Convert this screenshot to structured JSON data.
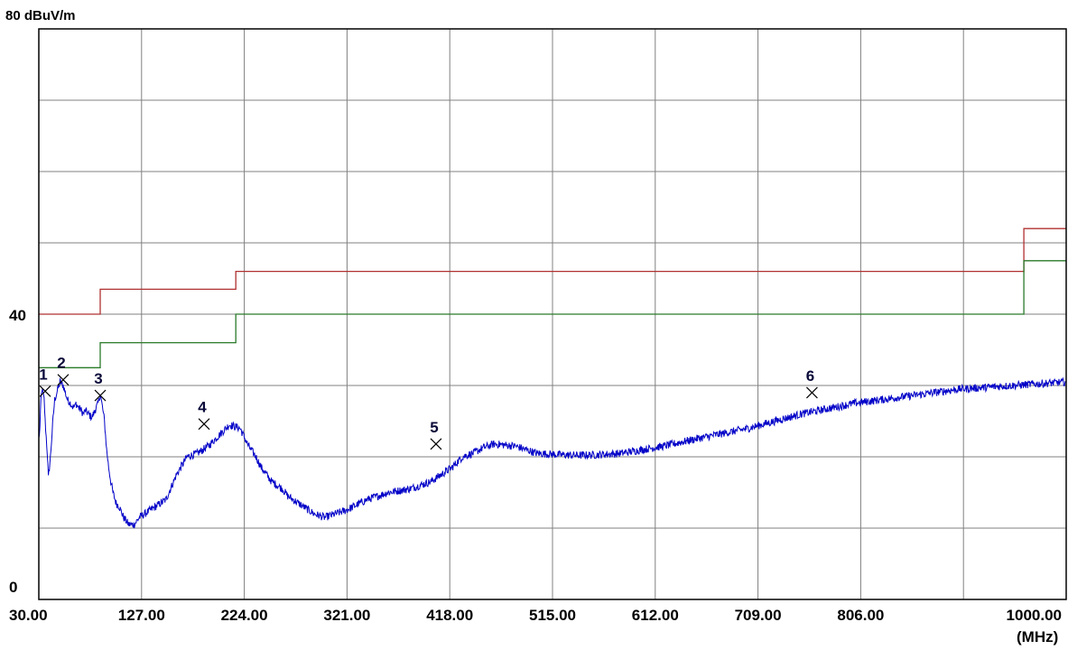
{
  "chart_data": {
    "type": "line",
    "title": "",
    "y_top_label": "80 dBuV/m",
    "y_mid_label": "40",
    "y_bottom_label": "0",
    "x_unit_label": "(MHz)",
    "x_tick_labels": [
      "30.00",
      "127.00",
      "224.00",
      "321.00",
      "418.00",
      "515.00",
      "612.00",
      "709.00",
      "806.00",
      "1000.00"
    ],
    "xlim": [
      30,
      1000
    ],
    "ylim": [
      0,
      80
    ],
    "grid": true,
    "colors": {
      "background": "#ffffff",
      "grid": "#808080",
      "frame": "#000000",
      "measurement": "#0000c8",
      "limit_red": "#b03030",
      "limit_green": "#2a7a2a",
      "marker": "#000000"
    },
    "series": [
      {
        "name": "",
        "color": "#b03030",
        "step": true,
        "x": [
          30,
          88,
          88,
          216,
          216,
          960,
          960,
          1000
        ],
        "y": [
          40,
          40,
          43.5,
          43.5,
          46,
          46,
          52,
          52
        ]
      },
      {
        "name": "",
        "color": "#2a7a2a",
        "step": true,
        "x": [
          30,
          88,
          88,
          216,
          216,
          960,
          960,
          1000
        ],
        "y": [
          32.5,
          32.5,
          36,
          36,
          40,
          40,
          47.5,
          47.5
        ]
      },
      {
        "name": "",
        "color": "#0000c8",
        "noisy": true,
        "x": [
          30,
          31,
          32,
          33,
          35,
          36,
          38,
          39,
          41,
          43,
          45,
          47,
          50,
          53,
          55,
          57,
          60,
          62,
          64,
          65,
          67,
          70,
          72,
          74,
          77,
          80,
          83,
          86,
          88,
          90,
          92,
          94,
          96,
          98,
          100,
          103,
          106,
          110,
          115,
          120,
          125,
          130,
          140,
          150,
          160,
          170,
          180,
          190,
          200,
          210,
          220,
          228,
          235,
          240,
          245,
          250,
          255,
          260,
          265,
          270,
          280,
          290,
          300,
          320,
          340,
          360,
          380,
          400,
          410,
          420,
          430,
          440,
          450,
          460,
          480,
          500,
          520,
          540,
          560,
          580,
          600,
          620,
          650,
          700,
          750,
          800,
          850,
          900,
          950,
          1000
        ],
        "y": [
          22.5,
          24,
          28,
          29.5,
          28,
          25,
          20.5,
          17,
          20,
          24.5,
          28,
          29,
          30.5,
          30,
          29,
          28,
          27.5,
          27,
          27,
          27.5,
          27,
          26.5,
          26,
          26.5,
          26,
          25.5,
          26.5,
          27.5,
          28.8,
          27,
          25,
          21,
          18.5,
          16.5,
          15,
          13.5,
          13,
          11.5,
          10.5,
          10.5,
          11.5,
          12,
          13,
          14,
          17.5,
          20,
          20.5,
          21.5,
          23,
          24.5,
          24,
          21.5,
          20,
          18.5,
          17.5,
          16.5,
          16,
          15.5,
          14.5,
          14,
          13,
          12,
          11.5,
          12.5,
          14,
          15,
          15.5,
          16.5,
          17.5,
          18.5,
          20,
          20.5,
          21.3,
          21.8,
          21.5,
          20.5,
          20.3,
          20.2,
          20.3,
          20.5,
          21,
          21.5,
          22.5,
          24,
          26,
          27.5,
          28.5,
          29.5,
          30,
          30.5
        ]
      }
    ],
    "markers": [
      {
        "label": "1",
        "x": 36,
        "y": 29.2
      },
      {
        "label": "2",
        "x": 53,
        "y": 30.8
      },
      {
        "label": "3",
        "x": 88,
        "y": 28.6
      },
      {
        "label": "4",
        "x": 186,
        "y": 24.6
      },
      {
        "label": "5",
        "x": 405,
        "y": 21.8
      },
      {
        "label": "6",
        "x": 760,
        "y": 29.0
      }
    ]
  }
}
